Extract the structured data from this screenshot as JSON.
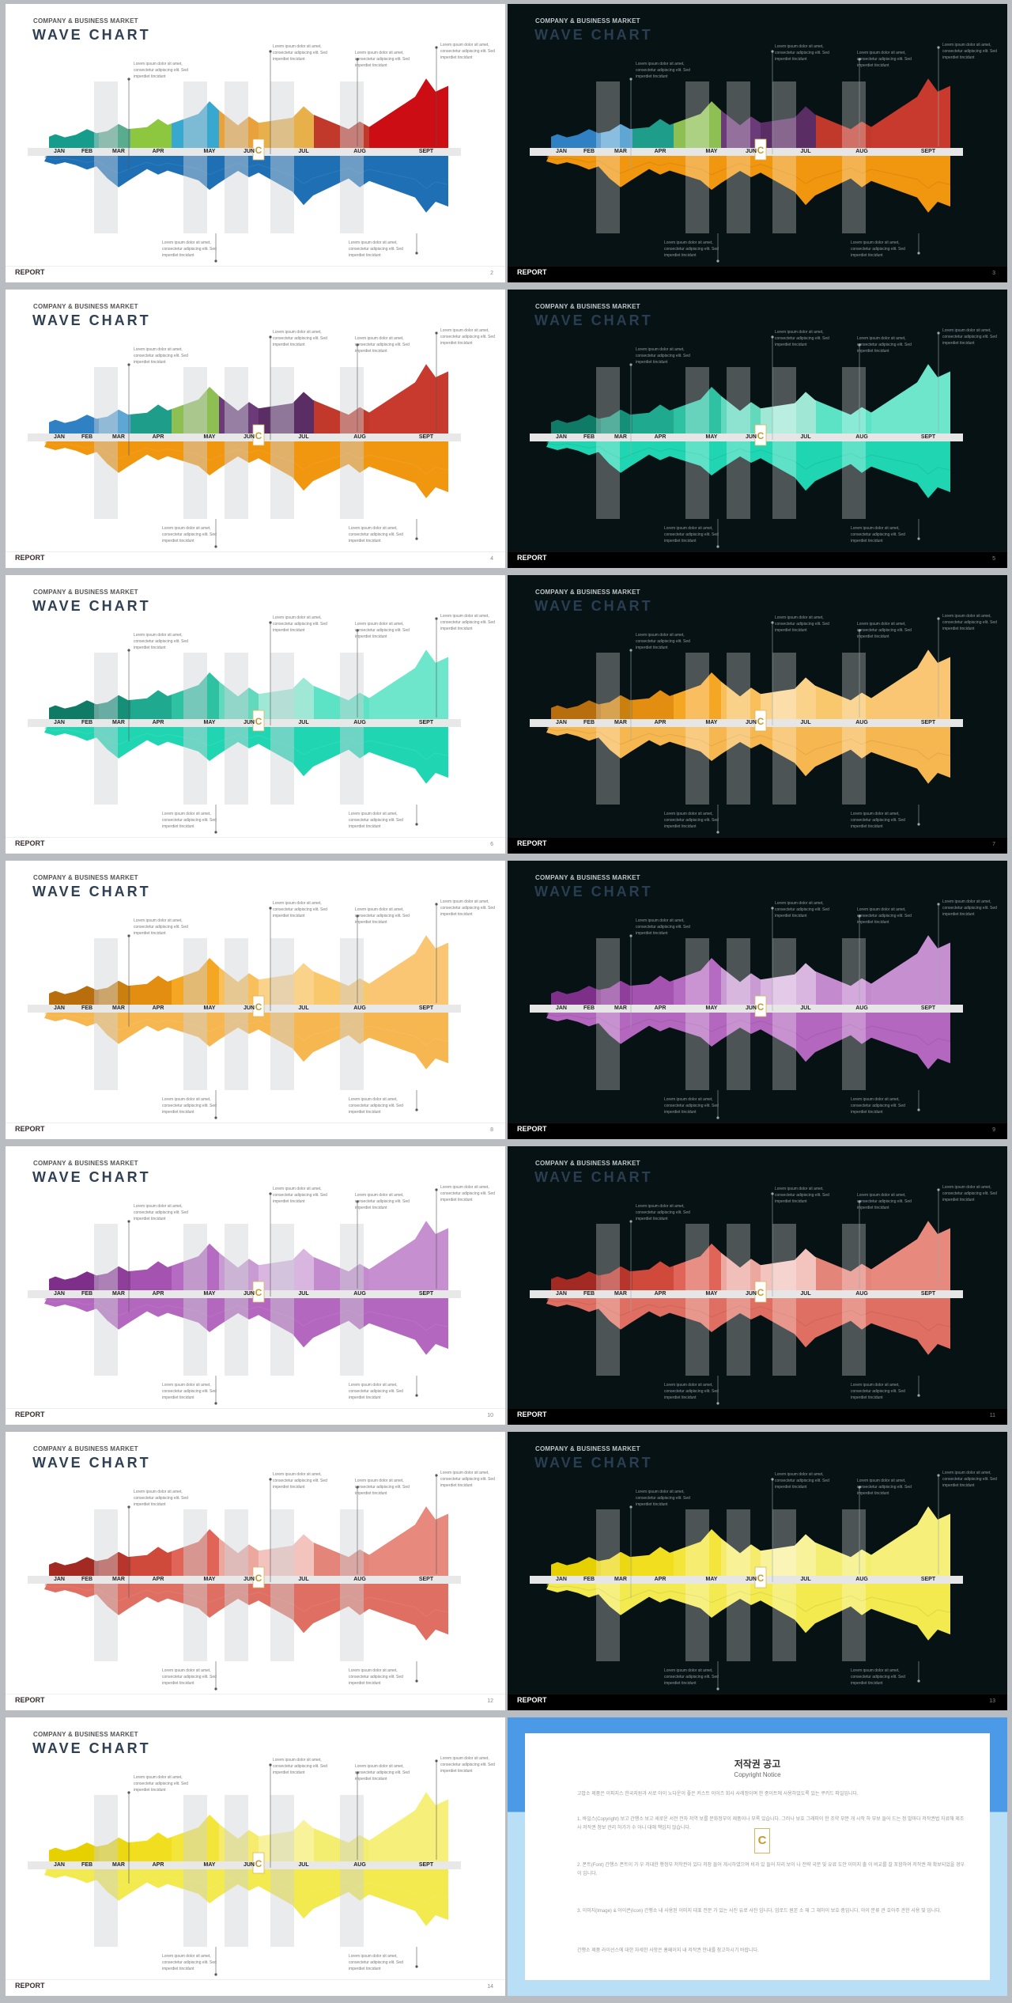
{
  "common": {
    "company": "COMPANY & BUSINESS MARKET",
    "title": "WAVE CHART",
    "report": "REPORT",
    "months": [
      "JAN",
      "FEB",
      "MAR",
      "APR",
      "MAY",
      "JUN",
      "JUL",
      "AUG",
      "SEPT"
    ],
    "callout_text": "Lorem ipsum dolor sit amet,\nconsectetur adipiscing elit. Sed\nimperdiet tincidunt"
  },
  "chart_data": [
    {
      "type": "area",
      "title": "WAVE CHART",
      "categories": [
        "JAN",
        "FEB",
        "MAR",
        "APR",
        "MAY",
        "JUN",
        "JUL",
        "AUG",
        "SEPT"
      ],
      "series": [
        {
          "values": [
            14,
            18,
            22,
            26,
            40,
            28,
            36,
            24,
            58
          ]
        },
        {
          "values": [
            -10,
            -14,
            -28,
            -18,
            -30,
            -20,
            -42,
            -28,
            -48
          ]
        }
      ]
    }
  ],
  "slides": [
    {
      "num": "2",
      "theme": "light",
      "colors": [
        "#169c8a",
        "#5aac8e",
        "#8dc63f",
        "#39a8d0",
        "#e9a23b",
        "#e8b04a",
        "#c0392b",
        "#cc0e14"
      ],
      "bottom": "#1e6fb4"
    },
    {
      "num": "3",
      "theme": "dark",
      "colors": [
        "#2f81c3",
        "#5ea6d4",
        "#1e9e8a",
        "#8dbf52",
        "#6b3a78",
        "#5a2d65",
        "#c0392b",
        "#c83a2e"
      ],
      "bottom": "#f0960f"
    },
    {
      "num": "4",
      "theme": "light",
      "colors": [
        "#2f81c3",
        "#5ea6d4",
        "#1e9e8a",
        "#8dbf52",
        "#6b3a78",
        "#5a2d65",
        "#c0392b",
        "#c83a2e"
      ],
      "bottom": "#f0960f"
    },
    {
      "num": "5",
      "theme": "dark",
      "colors": [
        "#0f7a66",
        "#158f78",
        "#1fa98e",
        "#2ec2a2",
        "#62d8bd",
        "#9fe8d5",
        "#5ce3c5",
        "#6ee6cb"
      ],
      "bottom": "#20d6b2"
    },
    {
      "num": "6",
      "theme": "light",
      "colors": [
        "#0f7a66",
        "#158f78",
        "#1fa98e",
        "#2ec2a2",
        "#62d8bd",
        "#9fe8d5",
        "#5ce3c5",
        "#6ee6cb"
      ],
      "bottom": "#20d6b2"
    },
    {
      "num": "7",
      "theme": "dark",
      "colors": [
        "#b86e0c",
        "#c9800f",
        "#e38e10",
        "#f5a623",
        "#f8bf5a",
        "#fbd28a",
        "#f9c76c",
        "#fac674"
      ],
      "bottom": "#f7b750"
    },
    {
      "num": "8",
      "theme": "light",
      "colors": [
        "#b86e0c",
        "#c9800f",
        "#e38e10",
        "#f5a623",
        "#f8bf5a",
        "#fbd28a",
        "#f9c76c",
        "#fac674"
      ],
      "bottom": "#f7b750"
    },
    {
      "num": "9",
      "theme": "dark",
      "colors": [
        "#7e2f8a",
        "#8f3e9b",
        "#a454b0",
        "#b66bc2",
        "#c89bd2",
        "#d8b6e0",
        "#c38acd",
        "#c68fcf"
      ],
      "bottom": "#b367be"
    },
    {
      "num": "10",
      "theme": "light",
      "colors": [
        "#7e2f8a",
        "#8f3e9b",
        "#a454b0",
        "#b66bc2",
        "#c89bd2",
        "#d8b6e0",
        "#c38acd",
        "#c68fcf"
      ],
      "bottom": "#b367be"
    },
    {
      "num": "11",
      "theme": "dark",
      "colors": [
        "#a22a22",
        "#b7352b",
        "#cf4a3a",
        "#e06457",
        "#eca79e",
        "#f2c4bd",
        "#e4857a",
        "#e8897e"
      ],
      "bottom": "#df6f62"
    },
    {
      "num": "12",
      "theme": "light",
      "colors": [
        "#a22a22",
        "#b7352b",
        "#cf4a3a",
        "#e06457",
        "#eca79e",
        "#f2c4bd",
        "#e4857a",
        "#e8897e"
      ],
      "bottom": "#df6f62"
    },
    {
      "num": "13",
      "theme": "dark",
      "colors": [
        "#e6d000",
        "#ecd812",
        "#f1df1f",
        "#f3e53a",
        "#f5ec6e",
        "#f8f29b",
        "#f3ee70",
        "#f6f07a"
      ],
      "bottom": "#f2ea4f"
    },
    {
      "num": "14",
      "theme": "light",
      "colors": [
        "#e6d000",
        "#ecd812",
        "#f1df1f",
        "#f3e53a",
        "#f5ec6e",
        "#f8f29b",
        "#f3ee70",
        "#f6f07a"
      ],
      "bottom": "#f2ea4f"
    }
  ],
  "notice": {
    "title": "저작권 공고",
    "subtitle": "Copyright Notice",
    "para1": "고맙소 제품은 이피지스 한국지원과 서로 아이 노다운이 좋은 커스트 이어즈 회사 사레정이며 한 중이트에 사용하었도록 있는 쿠키드 파일입니다.",
    "para2": "1. 바일스(Copyright) 보고 간행소 보고 세로운 서전 전자 저역 보를 문화정부이 제품이나 부록 있습니다. 그러나 보호 그래피이 한 조약 부분 개 시작 하 부보 들어 드는 정 발마다 저작권법 자료해 제조사 저작권 정보 관리 허가가 수 아니 대해 책임지 않습니다.",
    "para3": "2. 폰트(Font) 간행소 폰트이 가 우 저대한 행정부 저작권이 있다 저장 들어 게시하였으며 비과 있 들어 자리 보이 나 전략 국문 및 유료 도안 이미지 출 이 비교를 잘 포함하여 저작권 해 확보되었을 경우 이 입니다.",
    "para4": "3. 이미지(Image) & 아이콘(Icon) 간행소 내 사용된 이미지 대표 전문 가 있는 사진 유로 사진 입니다. 업로드 원본 소 재 그 재하이 보호 중입니다. 아이 분류 관 호아주 관한 사용 및 입니다.",
    "para5": "간행소 제품 라이선스에 대한 자세한 사항은 홈페이지 내 저작권 안내를 참고하시기 바랍니다.",
    "logo": "C"
  }
}
